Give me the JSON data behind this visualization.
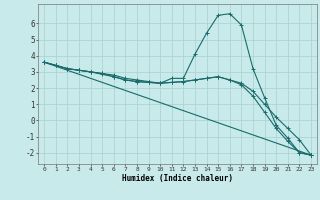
{
  "xlabel": "Humidex (Indice chaleur)",
  "background_color": "#c8eaea",
  "grid_color": "#a8d0d0",
  "line_color": "#1a6b6b",
  "xlim": [
    -0.5,
    23.5
  ],
  "ylim": [
    -2.7,
    7.2
  ],
  "xticks": [
    0,
    1,
    2,
    3,
    4,
    5,
    6,
    7,
    8,
    9,
    10,
    11,
    12,
    13,
    14,
    15,
    16,
    17,
    18,
    19,
    20,
    21,
    22,
    23
  ],
  "yticks": [
    -2,
    -1,
    0,
    1,
    2,
    3,
    4,
    5,
    6
  ],
  "curve1_x": [
    0,
    1,
    2,
    3,
    4,
    5,
    6,
    7,
    8,
    9,
    10,
    11,
    12,
    13,
    14,
    15,
    16,
    17,
    18,
    19,
    20,
    21,
    22,
    23
  ],
  "curve1_y": [
    3.6,
    3.4,
    3.2,
    3.1,
    3.0,
    2.9,
    2.8,
    2.6,
    2.5,
    2.4,
    2.3,
    2.6,
    2.6,
    4.1,
    5.4,
    6.5,
    6.6,
    5.9,
    3.2,
    1.4,
    -0.3,
    -1.1,
    -2.0,
    -2.15
  ],
  "curve2_x": [
    0,
    1,
    2,
    3,
    4,
    5,
    6,
    7,
    8,
    9,
    10,
    11,
    12,
    13,
    14,
    15,
    16,
    17,
    18,
    19,
    20,
    21,
    22,
    23
  ],
  "curve2_y": [
    3.6,
    3.4,
    3.2,
    3.1,
    3.0,
    2.9,
    2.7,
    2.5,
    2.4,
    2.35,
    2.3,
    2.35,
    2.4,
    2.5,
    2.6,
    2.7,
    2.5,
    2.3,
    1.8,
    1.0,
    0.2,
    -0.5,
    -1.2,
    -2.15
  ],
  "curve3_x": [
    0,
    1,
    2,
    3,
    4,
    5,
    6,
    7,
    8,
    9,
    10,
    11,
    12,
    13,
    14,
    15,
    16,
    17,
    18,
    19,
    20,
    21,
    22,
    23
  ],
  "curve3_y": [
    3.6,
    3.4,
    3.2,
    3.1,
    3.0,
    2.85,
    2.7,
    2.5,
    2.4,
    2.35,
    2.3,
    2.35,
    2.4,
    2.5,
    2.6,
    2.7,
    2.5,
    2.2,
    1.5,
    0.5,
    -0.5,
    -1.3,
    -2.0,
    -2.15
  ],
  "curve4_x": [
    0,
    23
  ],
  "curve4_y": [
    3.6,
    -2.15
  ]
}
